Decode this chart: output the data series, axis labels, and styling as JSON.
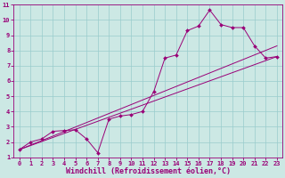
{
  "xlabel": "Windchill (Refroidissement éolien,°C)",
  "background_color": "#cce8e4",
  "line_color": "#990077",
  "grid_color": "#99cccc",
  "xlim": [
    -0.5,
    23.5
  ],
  "ylim": [
    1,
    11
  ],
  "xticks": [
    0,
    1,
    2,
    3,
    4,
    5,
    6,
    7,
    8,
    9,
    10,
    11,
    12,
    13,
    14,
    15,
    16,
    17,
    18,
    19,
    20,
    21,
    22,
    23
  ],
  "yticks": [
    1,
    2,
    3,
    4,
    5,
    6,
    7,
    8,
    9,
    10,
    11
  ],
  "line1_x": [
    0,
    1,
    2,
    3,
    4,
    5,
    6,
    7,
    8,
    9,
    10,
    11,
    12,
    13,
    14,
    15,
    16,
    17,
    18,
    19,
    20,
    21,
    22,
    23
  ],
  "line1_y": [
    1.5,
    2.0,
    2.2,
    2.7,
    2.75,
    2.8,
    2.2,
    1.3,
    3.5,
    3.7,
    3.8,
    4.0,
    5.3,
    7.5,
    7.7,
    9.3,
    9.6,
    10.65,
    9.7,
    9.5,
    9.5,
    8.3,
    7.5,
    7.6
  ],
  "line2_x": [
    0,
    23
  ],
  "line2_y": [
    1.5,
    8.3
  ],
  "line3_x": [
    0,
    23
  ],
  "line3_y": [
    1.5,
    7.6
  ],
  "marker": "D",
  "markersize": 2.0,
  "linewidth": 0.7,
  "tick_fontsize": 5.0,
  "xlabel_fontsize": 6.0
}
